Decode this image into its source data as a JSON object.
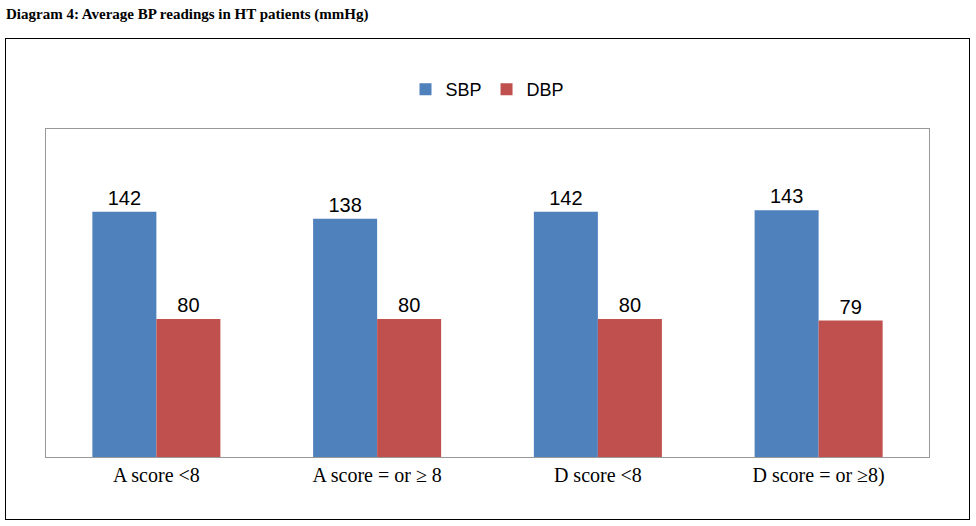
{
  "chart_data": {
    "type": "bar",
    "title": "Diagram 4: Average BP readings in HT patients (mmHg)",
    "categories": [
      "A score <8",
      "A score = or ≥ 8",
      "D score <8",
      "D score = or ≥8)"
    ],
    "series": [
      {
        "name": "SBP",
        "color": "#4f81bd",
        "values": [
          142,
          138,
          142,
          143
        ]
      },
      {
        "name": "DBP",
        "color": "#c0504d",
        "values": [
          80,
          80,
          80,
          79
        ]
      }
    ],
    "ylim": [
      0,
      190
    ],
    "tick_labels": "x",
    "data_labels": true,
    "legend": "top",
    "grid": false
  }
}
